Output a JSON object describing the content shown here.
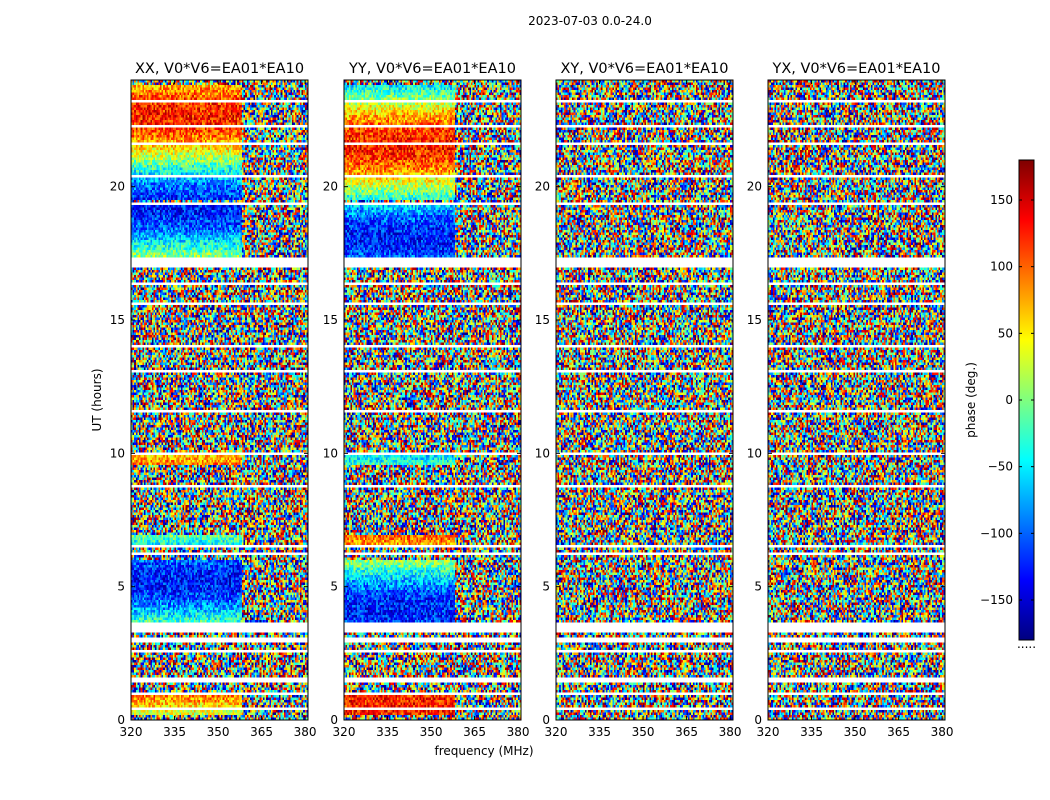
{
  "figure": {
    "suptitle": "2023-07-03 0.0-24.0"
  },
  "chart_data": {
    "type": "heatmap",
    "shared": {
      "xlabel": "frequency (MHz)",
      "ylabel": "UT (hours)",
      "xlim": [
        320,
        381
      ],
      "ylim": [
        0,
        24
      ],
      "xticks": [
        320,
        335,
        350,
        365,
        380
      ],
      "yticks": [
        0,
        5,
        10,
        15,
        20
      ],
      "value_range": [
        -180,
        180
      ]
    },
    "panels": [
      {
        "title": "XX, V0*V6=EA01*EA10",
        "key": "XX",
        "coherent": true
      },
      {
        "title": "YY, V0*V6=EA01*EA10",
        "key": "YY",
        "coherent": true
      },
      {
        "title": "XY, V0*V6=EA01*EA10",
        "key": "XY",
        "coherent": false
      },
      {
        "title": "YX, V0*V6=EA01*EA10",
        "key": "YX",
        "coherent": false
      }
    ],
    "flagged_ut_ranges": [
      [
        0.35,
        0.45
      ],
      [
        0.95,
        1.02
      ],
      [
        1.45,
        1.55
      ],
      [
        2.55,
        2.62
      ],
      [
        2.95,
        3.05
      ],
      [
        3.3,
        3.65
      ],
      [
        6.15,
        6.3
      ],
      [
        6.45,
        6.55
      ],
      [
        7.55,
        7.62
      ],
      [
        8.75,
        8.82
      ],
      [
        9.95,
        10.02
      ],
      [
        11.5,
        11.58
      ],
      [
        13.0,
        13.08
      ],
      [
        13.95,
        14.05
      ],
      [
        15.6,
        15.68
      ],
      [
        16.35,
        16.45
      ],
      [
        16.95,
        17.35
      ],
      [
        19.35,
        19.45
      ],
      [
        20.3,
        20.4
      ],
      [
        21.55,
        21.62
      ],
      [
        22.2,
        22.3
      ],
      [
        23.15,
        23.22
      ]
    ],
    "colorbar": {
      "label": "phase (deg.)",
      "range": [
        -180,
        180
      ],
      "ticks": [
        150,
        100,
        50,
        0,
        -50,
        -100,
        -150
      ],
      "tick_labels": [
        "150",
        "100",
        "50",
        "0",
        "−50",
        "−100",
        "−150"
      ],
      "colormap": "jet",
      "stops": [
        "#00007f",
        "#0000ff",
        "#007fff",
        "#00ffff",
        "#7fff7f",
        "#ffff00",
        "#ff7f00",
        "#ff0000",
        "#7f0000"
      ],
      "footer": "....."
    }
  }
}
